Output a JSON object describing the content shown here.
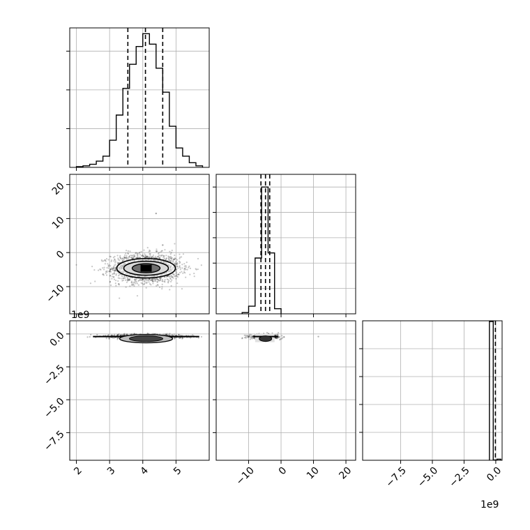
{
  "chart_data": {
    "type": "corner",
    "grid": true,
    "panels": [
      {
        "id": "hist-0",
        "type": "histogram",
        "x_range": [
          1.8,
          6.0
        ],
        "y_range": [
          0,
          0.36
        ],
        "bins": [
          [
            2.0,
            2.2,
            0.002
          ],
          [
            2.2,
            2.4,
            0.004
          ],
          [
            2.4,
            2.6,
            0.008
          ],
          [
            2.6,
            2.8,
            0.016
          ],
          [
            2.8,
            3.0,
            0.029
          ],
          [
            3.0,
            3.2,
            0.07
          ],
          [
            3.2,
            3.4,
            0.135
          ],
          [
            3.4,
            3.6,
            0.204
          ],
          [
            3.6,
            3.8,
            0.266
          ],
          [
            3.8,
            4.0,
            0.312
          ],
          [
            4.0,
            4.2,
            0.345
          ],
          [
            4.2,
            4.4,
            0.318
          ],
          [
            4.4,
            4.6,
            0.256
          ],
          [
            4.6,
            4.8,
            0.194
          ],
          [
            4.8,
            5.0,
            0.106
          ],
          [
            5.0,
            5.2,
            0.05
          ],
          [
            5.2,
            5.4,
            0.029
          ],
          [
            5.4,
            5.6,
            0.012
          ],
          [
            5.6,
            5.8,
            0.004
          ]
        ],
        "quantiles": [
          3.55,
          4.08,
          4.6
        ],
        "x_ticks": [
          2,
          3,
          4,
          5
        ],
        "y_ticks": [
          0.1,
          0.2,
          0.3
        ]
      },
      {
        "id": "hist-1",
        "type": "histogram",
        "x_range": [
          -20,
          23
        ],
        "y_range": [
          0,
          0.55
        ],
        "bins": [
          [
            -12,
            -10,
            0.005
          ],
          [
            -10,
            -8,
            0.03
          ],
          [
            -8,
            -6,
            0.22
          ],
          [
            -6,
            -4,
            0.5
          ],
          [
            -4,
            -2,
            0.24
          ],
          [
            -2,
            0,
            0.02
          ]
        ],
        "quantiles": [
          -6.2,
          -4.8,
          -3.5
        ],
        "x_ticks": [
          -10,
          0,
          10,
          20
        ],
        "y_ticks": [
          0.1,
          0.2,
          0.3,
          0.4,
          0.5
        ]
      },
      {
        "id": "hist-2",
        "type": "histogram",
        "x_range": [
          -10.5,
          0.5
        ],
        "y_range": [
          0,
          1.0
        ],
        "bins": [
          [
            -0.5,
            -0.2,
            0.995
          ],
          [
            -0.2,
            0.1,
            0.002
          ],
          [
            0.1,
            0.4,
            0.008
          ]
        ],
        "quantiles": [
          -0.03
        ],
        "x_ticks": [
          -7.5,
          -5.0,
          -2.5,
          0.0
        ],
        "y_ticks": [
          0.2,
          0.4,
          0.6,
          0.8
        ],
        "offset_text": "1e9"
      },
      {
        "id": "scatter-1-0",
        "type": "density",
        "x_range": [
          1.8,
          6.0
        ],
        "y_range": [
          -18,
          23
        ],
        "center": [
          4.1,
          -4.6
        ],
        "x_ticks": [
          2,
          3,
          4,
          5
        ],
        "y_ticks": [
          -10,
          0,
          10,
          20
        ],
        "y_tick_labels": [
          "−10",
          "0",
          "10",
          "20"
        ],
        "outliers": [
          [
            4.4,
            11.5
          ],
          [
            4.6,
            2.2
          ]
        ]
      },
      {
        "id": "scatter-2-0",
        "type": "density",
        "x_range": [
          1.8,
          6.0
        ],
        "y_range": [
          -9.6,
          1.0
        ],
        "center": [
          4.1,
          -0.2
        ],
        "x_ticks": [
          2,
          3,
          4,
          5
        ],
        "y_ticks": [
          0.0,
          -2.5,
          -5.0,
          -7.5
        ],
        "y_tick_labels": [
          "0.0",
          "−2.5",
          "−5.0",
          "−7.5"
        ],
        "offset_text": "1e9"
      },
      {
        "id": "scatter-2-1",
        "type": "density",
        "x_range": [
          -20,
          23
        ],
        "y_range": [
          -9.6,
          1.0
        ],
        "center": [
          -4.8,
          -0.2
        ],
        "x_ticks": [
          -10,
          0,
          10,
          20
        ],
        "y_ticks": [
          0.0,
          -2.5,
          -5.0,
          -7.5
        ]
      }
    ],
    "bottom_tick_labels": {
      "col0": [
        "2",
        "3",
        "4",
        "5"
      ],
      "col1": [
        "−10",
        "0",
        "10",
        "20"
      ],
      "col2": [
        "−7.5",
        "−5.0",
        "−2.5",
        "0.0"
      ]
    },
    "left_tick_labels": {
      "row1": [
        "−10",
        "0",
        "10",
        "20"
      ],
      "row2": [
        "0.0",
        "−2.5",
        "−5.0",
        "−7.5"
      ]
    },
    "offset_texts": [
      "1e9",
      "1e9"
    ]
  }
}
